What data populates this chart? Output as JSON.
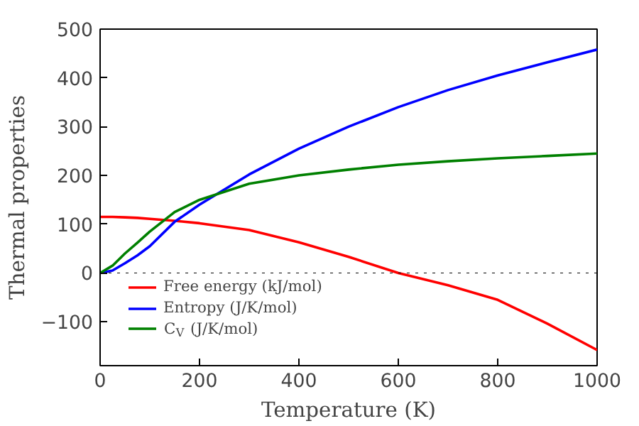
{
  "chart_data": {
    "type": "line",
    "xlabel": "Temperature (K)",
    "ylabel": "Thermal properties",
    "x": [
      0,
      25,
      50,
      75,
      100,
      150,
      200,
      300,
      400,
      500,
      600,
      700,
      800,
      900,
      1000
    ],
    "series": [
      {
        "name": "Free energy (kJ/mol)",
        "color": "#ff0000",
        "values": [
          115,
          115,
          114,
          113,
          111,
          107,
          102,
          88,
          63,
          33,
          0,
          -25,
          -55,
          -104,
          -158
        ]
      },
      {
        "name": "Entropy (J/K/mol)",
        "color": "#0000ff",
        "values": [
          0,
          5,
          20,
          36,
          55,
          105,
          140,
          202,
          255,
          300,
          340,
          375,
          405,
          432,
          458
        ]
      },
      {
        "name": "C$_{V}$ (J/K/mol)",
        "color": "#008000",
        "values": [
          0,
          15,
          40,
          62,
          85,
          125,
          150,
          183,
          200,
          212,
          222,
          229,
          235,
          240,
          245
        ]
      }
    ],
    "xlim": [
      0,
      1000
    ],
    "ylim": [
      -190,
      500
    ],
    "xticks": [
      0,
      200,
      400,
      600,
      800,
      1000
    ],
    "yticks": [
      -100,
      0,
      100,
      200,
      300,
      400,
      500
    ],
    "ref_lines": [
      {
        "axis": "y",
        "value": 0,
        "color": "#000000",
        "line_style": "dotted"
      }
    ],
    "legend": "bottom left",
    "grid": false
  }
}
